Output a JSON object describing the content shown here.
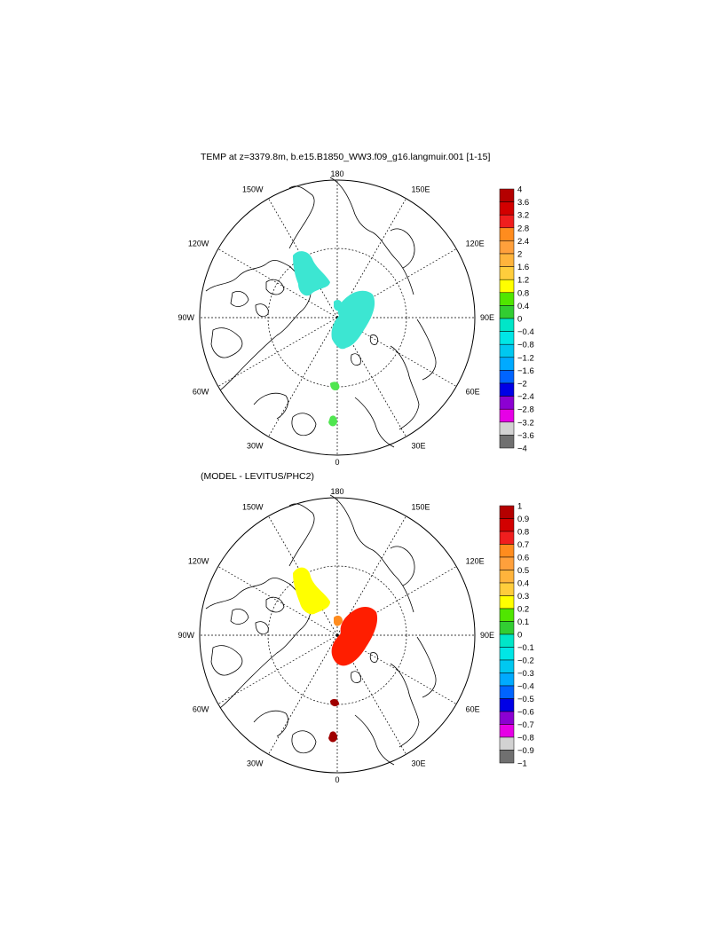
{
  "top_panel": {
    "title": "TEMP at z=3379.8m, b.e15.B1850_WW3.f09_g16.langmuir.001 [1-15]",
    "lon_labels": [
      "180",
      "150E",
      "120E",
      "90E",
      "60E",
      "30E",
      "0",
      "30W",
      "60W",
      "90W",
      "120W",
      "150W"
    ],
    "colorbar_labels": [
      "4",
      "3.6",
      "3.2",
      "2.8",
      "2.4",
      "2",
      "1.6",
      "1.2",
      "0.8",
      "0.4",
      "0",
      "−0.4",
      "−0.8",
      "−1.2",
      "−1.6",
      "−2",
      "−2.4",
      "−2.8",
      "−3.2",
      "−3.6",
      "−4"
    ]
  },
  "bottom_panel": {
    "title": "(MODEL - LEVITUS/PHC2)",
    "lon_labels": [
      "180",
      "150E",
      "120E",
      "90E",
      "60E",
      "30E",
      "0",
      "30W",
      "60W",
      "90W",
      "120W",
      "150W"
    ],
    "colorbar_labels": [
      "1",
      "0.9",
      "0.8",
      "0.7",
      "0.6",
      "0.5",
      "0.4",
      "0.3",
      "0.2",
      "0.1",
      "0",
      "−0.1",
      "−0.2",
      "−0.3",
      "−0.4",
      "−0.5",
      "−0.6",
      "−0.7",
      "−0.8",
      "−0.9",
      "−1"
    ]
  },
  "colorbar_colors": [
    "#b40000",
    "#d20000",
    "#f01e1e",
    "#ff8c1e",
    "#ffa03c",
    "#ffb43c",
    "#ffcd3c",
    "#ffff00",
    "#50e600",
    "#32cd32",
    "#00e6c8",
    "#00e6e6",
    "#00c8f0",
    "#00aaff",
    "#0064ff",
    "#0000e6",
    "#8c00d2",
    "#e600e6",
    "#d2d2d2",
    "#707070"
  ],
  "field_colors": {
    "top_main": "#3ce6d2",
    "top_small": "#50e650",
    "bottom_canada": "#ffff00",
    "bottom_main": "#ff1e00",
    "bottom_small": "#a00000",
    "bottom_orange": "#ff8c1e"
  }
}
